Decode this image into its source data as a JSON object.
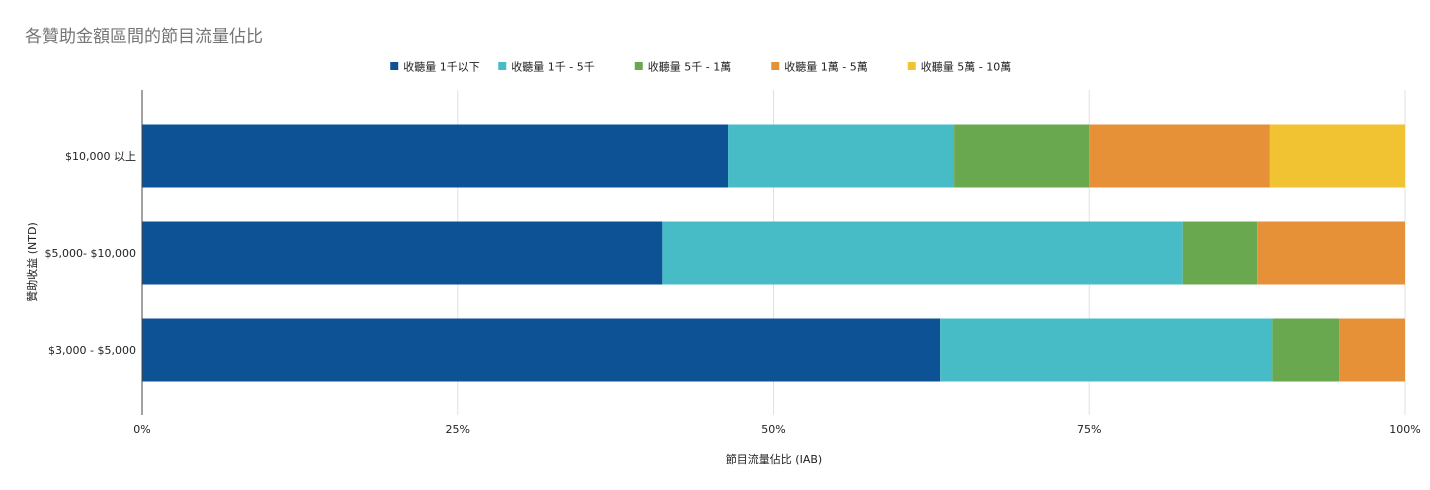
{
  "chart_data": {
    "type": "bar",
    "orientation": "horizontal",
    "stacked": "percent",
    "title": "各贊助金額區間的節目流量佔比",
    "xlabel": "節目流量佔比 (IAB)",
    "ylabel": "贊助收益 (NTD)",
    "xlim": [
      0,
      100
    ],
    "x_ticks": [
      "0%",
      "25%",
      "50%",
      "75%",
      "100%"
    ],
    "grid": true,
    "legend_position": "top",
    "categories": [
      "$10,000 以上",
      "$5,000- $10,000",
      "$3,000 - $5,000"
    ],
    "series": [
      {
        "name": "收聽量 1千以下",
        "color": "#0d5295",
        "values": [
          46.4,
          41.2,
          63.2
        ]
      },
      {
        "name": "收聽量 1千 - 5千",
        "color": "#47bcc6",
        "values": [
          17.9,
          41.2,
          26.3
        ]
      },
      {
        "name": "收聽量 5千 - 1萬",
        "color": "#6aa84f",
        "values": [
          10.7,
          5.9,
          5.3
        ]
      },
      {
        "name": "收聽量 1萬 - 5萬",
        "color": "#e69138",
        "values": [
          14.3,
          11.7,
          5.2
        ]
      },
      {
        "name": "收聽量 5萬 - 10萬",
        "color": "#f1c232",
        "values": [
          10.7,
          0,
          0
        ]
      }
    ]
  }
}
